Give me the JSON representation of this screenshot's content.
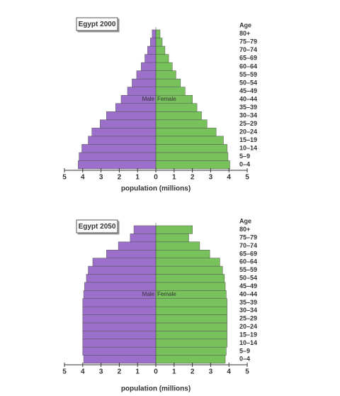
{
  "chart_data": [
    {
      "type": "pyramid",
      "title": "Egypt 2000",
      "xlabel": "population (millions)",
      "ylabel": "Age",
      "categories": [
        "0–4",
        "5–9",
        "10–14",
        "15–19",
        "20–24",
        "25–29",
        "30–34",
        "35–39",
        "40–44",
        "45–49",
        "50–54",
        "55–59",
        "60–64",
        "65–69",
        "70–74",
        "75–79",
        "80+"
      ],
      "series": [
        {
          "name": "Male",
          "side": "left",
          "color": "#9b6fca",
          "values": [
            4.25,
            4.2,
            4.05,
            3.7,
            3.5,
            3.05,
            2.7,
            2.2,
            1.9,
            1.55,
            1.3,
            1.05,
            0.8,
            0.6,
            0.45,
            0.3,
            0.2
          ]
        },
        {
          "name": "Female",
          "side": "right",
          "color": "#78c25c",
          "values": [
            4.05,
            3.95,
            3.9,
            3.7,
            3.3,
            2.8,
            2.5,
            2.25,
            2.0,
            1.6,
            1.35,
            1.1,
            0.9,
            0.7,
            0.5,
            0.35,
            0.23
          ]
        }
      ],
      "xlim": [
        -5,
        5
      ],
      "xticks": [
        {
          "value": -5,
          "label": "5"
        },
        {
          "value": -4,
          "label": "4"
        },
        {
          "value": -3,
          "label": "3"
        },
        {
          "value": -2,
          "label": "2"
        },
        {
          "value": -1,
          "label": "1"
        },
        0,
        1,
        2,
        3,
        4,
        5
      ]
    },
    {
      "type": "pyramid",
      "title": "Egypt 2050",
      "xlabel": "population (millions)",
      "ylabel": "Age",
      "categories": [
        "0–4",
        "5–9",
        "10–14",
        "15–19",
        "20–24",
        "25–29",
        "30–34",
        "35–39",
        "40–44",
        "45–49",
        "50–54",
        "55–59",
        "60–64",
        "65–69",
        "70–74",
        "75–79",
        "80+"
      ],
      "series": [
        {
          "name": "Male",
          "side": "left",
          "color": "#9b6fca",
          "values": [
            3.95,
            4.0,
            4.0,
            4.0,
            4.0,
            4.0,
            4.0,
            4.0,
            3.95,
            3.9,
            3.8,
            3.7,
            3.45,
            2.7,
            2.05,
            1.4,
            1.2
          ]
        },
        {
          "name": "Female",
          "side": "right",
          "color": "#78c25c",
          "values": [
            3.8,
            3.85,
            3.9,
            3.9,
            3.9,
            3.9,
            3.9,
            3.9,
            3.85,
            3.8,
            3.75,
            3.65,
            3.5,
            2.95,
            2.4,
            1.8,
            2.0
          ]
        }
      ],
      "xlim": [
        -5,
        5
      ],
      "xticks": [
        {
          "value": -5,
          "label": "5"
        },
        {
          "value": -4,
          "label": "4"
        },
        {
          "value": -3,
          "label": "3"
        },
        {
          "value": -2,
          "label": "2"
        },
        {
          "value": -1,
          "label": "1"
        },
        0,
        1,
        2,
        3,
        4,
        5
      ]
    }
  ]
}
